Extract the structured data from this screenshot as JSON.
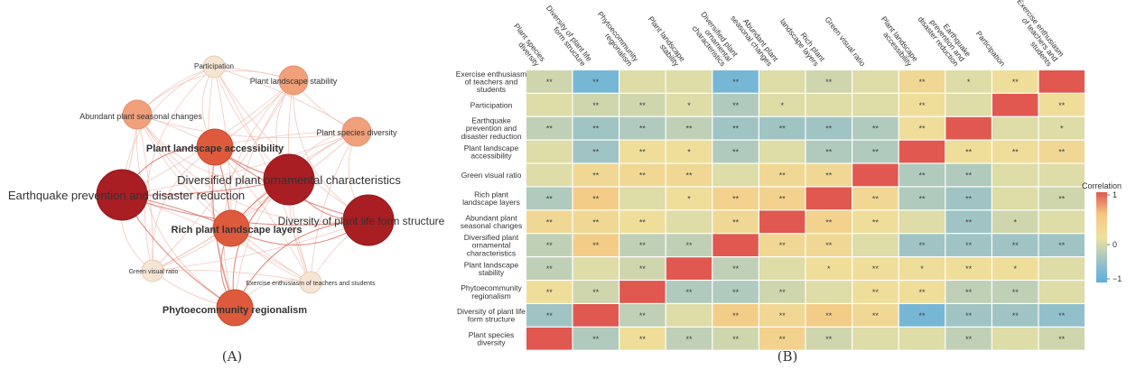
{
  "panel_a_label": "(A)",
  "panel_b_label": "(B)",
  "chart_data": [
    {
      "type": "network",
      "panel": "A",
      "nodes": [
        {
          "id": "participation",
          "label": "Participation",
          "size": 1
        },
        {
          "id": "stability",
          "label": "Plant landscape stability",
          "size": 2
        },
        {
          "id": "seasonal",
          "label": "Abundant plant seasonal changes",
          "size": 2
        },
        {
          "id": "accessibility",
          "label": "Plant landscape accessibility",
          "size": 4
        },
        {
          "id": "species",
          "label": "Plant species diversity",
          "size": 2
        },
        {
          "id": "ornamental",
          "label": "Diversified plant ornamental characteristics",
          "size": 5
        },
        {
          "id": "earthquake",
          "label": "Earthquake prevention and disaster reduction",
          "size": 5
        },
        {
          "id": "layers",
          "label": "Rich plant landscape layers",
          "size": 4
        },
        {
          "id": "lifeform",
          "label": "Diversity of plant life form structure",
          "size": 5
        },
        {
          "id": "green",
          "label": "Green visual ratio",
          "size": 1
        },
        {
          "id": "exercise",
          "label": "Exercise enthusiasm of teachers and students",
          "size": 1
        },
        {
          "id": "phyto",
          "label": "Phytoecommunity regionalism",
          "size": 4
        }
      ]
    },
    {
      "type": "heatmap",
      "panel": "B",
      "legend_title": "Correlation",
      "legend_ticks": [
        "1",
        "0",
        "−1"
      ],
      "columns": [
        "Plant species diversity",
        "Diversity of plant life form structure",
        "Phytoecommunity regionalism",
        "Plant landscape stability",
        "Diversified plant ornamental characteristics",
        "Abundant plant seasonal changes",
        "Rich plant landscape layers",
        "Green visual ratio",
        "Plant landscape accessibility",
        "Earthquake prevention and disaster reduction",
        "Participation",
        "Exercise enthusiasm of teachers and students"
      ],
      "rows": [
        {
          "label": "Exercise enthusiasm of teachers and students",
          "values": [
            -0.2,
            -0.8,
            -0.1,
            -0.1,
            -0.8,
            -0.1,
            -0.2,
            -0.1,
            0.2,
            -0.1,
            0.1,
            1
          ],
          "sig": [
            "**",
            "**",
            "",
            "",
            "**",
            "",
            "**",
            "",
            "**",
            "*",
            "**",
            ""
          ]
        },
        {
          "label": "Participation",
          "values": [
            -0.1,
            -0.2,
            -0.2,
            -0.1,
            -0.4,
            -0.1,
            -0.1,
            -0.1,
            0.1,
            -0.1,
            1,
            0.1
          ],
          "sig": [
            "",
            "**",
            "**",
            "*",
            "**",
            "*",
            "",
            "",
            "**",
            "",
            "",
            "**"
          ]
        },
        {
          "label": "Earthquake prevention and disaster reduction",
          "values": [
            -0.3,
            -0.5,
            -0.4,
            -0.3,
            -0.5,
            -0.5,
            -0.5,
            -0.4,
            0.1,
            1,
            -0.1,
            -0.1
          ],
          "sig": [
            "**",
            "**",
            "**",
            "**",
            "**",
            "**",
            "**",
            "**",
            "**",
            "",
            "",
            "*"
          ]
        },
        {
          "label": "Plant landscape accessibility",
          "values": [
            -0.1,
            -0.5,
            0.1,
            0.1,
            -0.4,
            -0.1,
            -0.4,
            -0.4,
            1,
            0.1,
            0.1,
            0.2
          ],
          "sig": [
            "",
            "**",
            "**",
            "*",
            "**",
            "",
            "**",
            "**",
            "",
            "**",
            "**",
            "**"
          ]
        },
        {
          "label": "Green visual ratio",
          "values": [
            -0.1,
            0.2,
            0.2,
            0.2,
            -0.1,
            0.2,
            0.2,
            1,
            -0.4,
            -0.4,
            -0.1,
            -0.1
          ],
          "sig": [
            "",
            "**",
            "**",
            "**",
            "",
            "**",
            "**",
            "",
            "**",
            "**",
            "",
            ""
          ]
        },
        {
          "label": "Rich plant landscape layers",
          "values": [
            -0.4,
            0.4,
            -0.1,
            0.1,
            0.3,
            0.3,
            1,
            0.2,
            -0.4,
            -0.5,
            -0.1,
            -0.2
          ],
          "sig": [
            "**",
            "**",
            "",
            "*",
            "**",
            "**",
            "",
            "**",
            "**",
            "**",
            "",
            "**"
          ]
        },
        {
          "label": "Abundant plant seasonal changes",
          "values": [
            0.2,
            0.2,
            0.1,
            -0.1,
            0.2,
            1,
            0.3,
            0.1,
            -0.1,
            -0.5,
            -0.2,
            -0.1
          ],
          "sig": [
            "**",
            "**",
            "**",
            "",
            "**",
            "",
            "**",
            "**",
            "",
            "**",
            "*",
            ""
          ]
        },
        {
          "label": "Diversified plant ornamental characteristics",
          "values": [
            -0.3,
            0.4,
            -0.3,
            -0.3,
            1,
            0.2,
            0.2,
            -0.1,
            -0.5,
            -0.5,
            -0.5,
            -0.5
          ],
          "sig": [
            "**",
            "**",
            "**",
            "**",
            "",
            "**",
            "**",
            "",
            "**",
            "**",
            "**",
            "**"
          ]
        },
        {
          "label": "Plant landscape stability",
          "values": [
            -0.3,
            -0.1,
            -0.2,
            1,
            -0.3,
            -0.1,
            0.1,
            0.1,
            0.1,
            0.1,
            0.1,
            -0.1
          ],
          "sig": [
            "**",
            "",
            "**",
            "",
            "**",
            "",
            "*",
            "**",
            "*",
            "**",
            "*",
            ""
          ]
        },
        {
          "label": "Phytoecommunity regionalism",
          "values": [
            0.1,
            -0.2,
            1,
            -0.4,
            -0.4,
            -0.2,
            -0.1,
            0.1,
            0.1,
            -0.3,
            -0.3,
            -0.1
          ],
          "sig": [
            "**",
            "**",
            "",
            "**",
            "**",
            "**",
            "",
            "**",
            "**",
            "**",
            "**",
            ""
          ]
        },
        {
          "label": "Diversity of plant life form structure",
          "values": [
            -0.5,
            1,
            -0.3,
            -0.1,
            0.4,
            0.2,
            0.4,
            0.2,
            -0.8,
            -0.5,
            -0.5,
            -0.6
          ],
          "sig": [
            "**",
            "",
            "**",
            "",
            "**",
            "**",
            "**",
            "**",
            "**",
            "**",
            "**",
            "**"
          ]
        },
        {
          "label": "Plant species diversity",
          "values": [
            1,
            -0.4,
            0.1,
            -0.3,
            -0.2,
            0.3,
            -0.2,
            -0.1,
            -0.1,
            -0.3,
            -0.1,
            -0.2
          ],
          "sig": [
            "",
            "**",
            "**",
            "**",
            "**",
            "**",
            "**",
            "",
            "",
            "**",
            "",
            "**"
          ]
        }
      ]
    }
  ]
}
